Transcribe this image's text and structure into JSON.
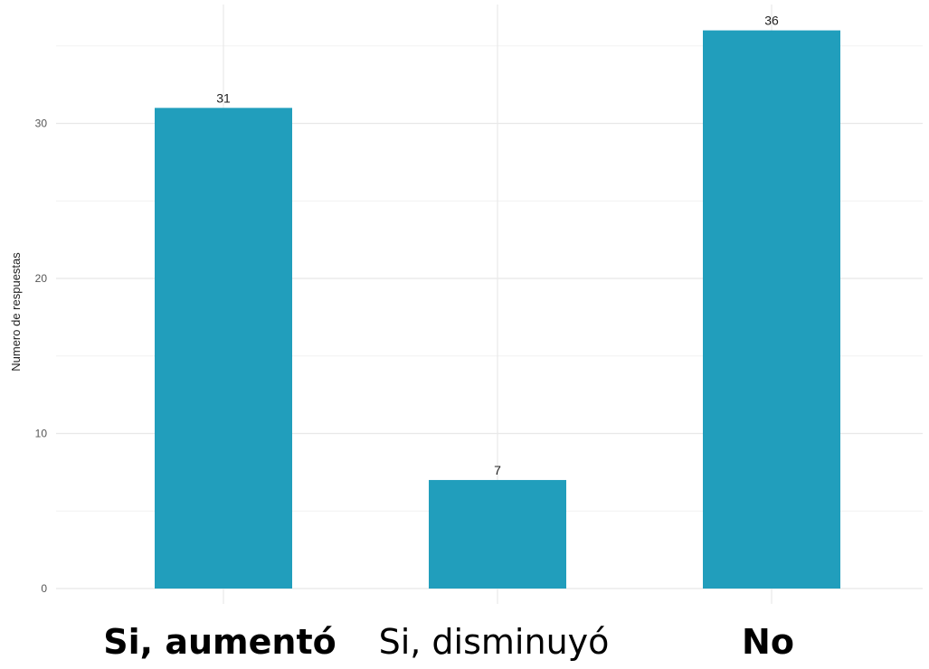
{
  "chart_data": {
    "type": "bar",
    "categories": [
      "Si, aumentó",
      "Si, disminuyó",
      "No"
    ],
    "category_bold": [
      true,
      false,
      true
    ],
    "values": [
      31,
      7,
      36
    ],
    "ylabel": "Numero de respuestas",
    "xlabel": "",
    "ylim": [
      0,
      38
    ],
    "yticks": [
      0,
      10,
      20,
      30
    ],
    "grid": true,
    "bar_color": "#219EBC",
    "data_labels": [
      "31",
      "7",
      "36"
    ]
  }
}
